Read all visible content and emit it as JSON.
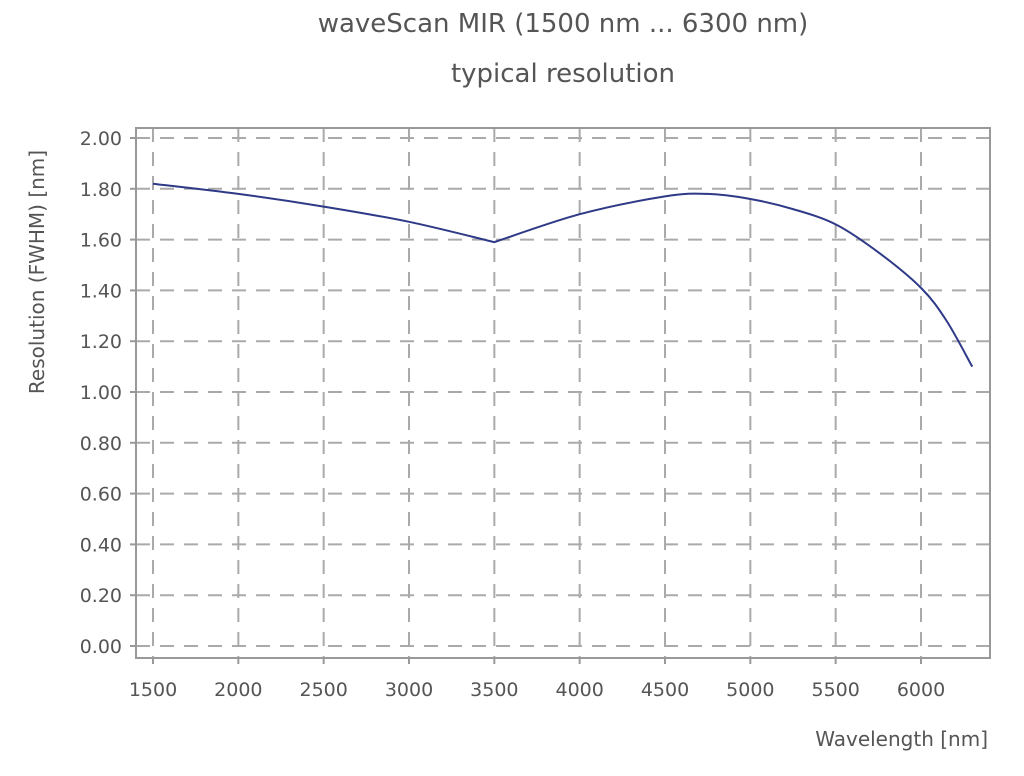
{
  "chart_data": {
    "type": "line",
    "title": "waveScan MIR (1500 nm ... 6300 nm)",
    "subtitle": "typical resolution",
    "xlabel": "Wavelength [nm]",
    "ylabel": "Resolution (FWHM) [nm]",
    "xlim": [
      1400,
      6400
    ],
    "ylim": [
      -0.05,
      2.04
    ],
    "xticks": [
      1500,
      2000,
      2500,
      3000,
      3500,
      4000,
      4500,
      5000,
      5500,
      6000
    ],
    "xtick_labels": [
      "1500",
      "2000",
      "2500",
      "3000",
      "3500",
      "4000",
      "4500",
      "5000",
      "5500",
      "6000"
    ],
    "yticks": [
      0,
      0.2,
      0.4,
      0.6,
      0.8,
      1.0,
      1.2,
      1.4,
      1.6,
      1.8,
      2.0
    ],
    "ytick_labels": [
      "0.00",
      "0.20",
      "0.40",
      "0.60",
      "0.80",
      "1.00",
      "1.20",
      "1.40",
      "1.60",
      "1.80",
      "2.00"
    ],
    "grid": true,
    "line_color": "#2e3a87",
    "series": [
      {
        "x": [
          1500,
          2000,
          2500,
          3000,
          3500,
          4000,
          4500,
          4750,
          5000,
          5250,
          5500,
          5750,
          6000,
          6150,
          6300
        ],
        "y": [
          1.82,
          1.78,
          1.73,
          1.67,
          1.59,
          1.7,
          1.77,
          1.78,
          1.76,
          1.72,
          1.66,
          1.55,
          1.41,
          1.28,
          1.1
        ]
      }
    ]
  }
}
